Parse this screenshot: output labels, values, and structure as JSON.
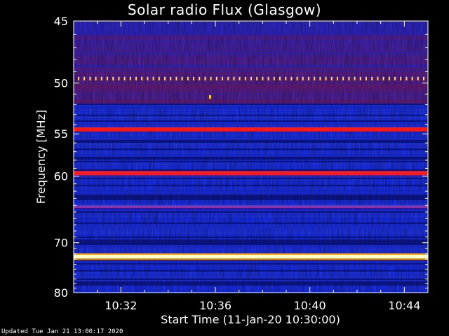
{
  "chart_data": {
    "type": "heatmap",
    "title": "Solar radio Flux (Glasgow)",
    "xlabel": "Start Time (11-Jan-20 10:30:00)",
    "ylabel": "Frequency [MHz]",
    "x_tick_labels": [
      "10:32",
      "10:36",
      "10:40",
      "10:44"
    ],
    "x_tick_minutes": [
      2,
      6,
      10,
      14
    ],
    "x_range_minutes": [
      0,
      15
    ],
    "y_ticks": [
      45,
      50,
      55,
      60,
      70,
      80
    ],
    "y_range": [
      45,
      80
    ],
    "y_scale": "reciprocal",
    "bands": [
      {
        "freq": 49.6,
        "level": "dotted",
        "color": "#ffdd66"
      },
      {
        "freq": 51.3,
        "level": "spot",
        "color": "#ffcc33"
      },
      {
        "freq": 54.5,
        "level": "strong",
        "color": "#ff1a1a"
      },
      {
        "freq": 59.6,
        "level": "strong",
        "color": "#ff1a1a"
      },
      {
        "freq": 64.2,
        "level": "weak",
        "color": "#8833aa"
      },
      {
        "freq": 72.5,
        "level": "saturated",
        "color": "#ffffcc"
      }
    ],
    "colors": {
      "background": "#000000",
      "low": "#000033",
      "mid": "#1a30ff",
      "high": "#d01010"
    }
  },
  "footer": "Updated Tue Jan 21 13:00:17 2020"
}
